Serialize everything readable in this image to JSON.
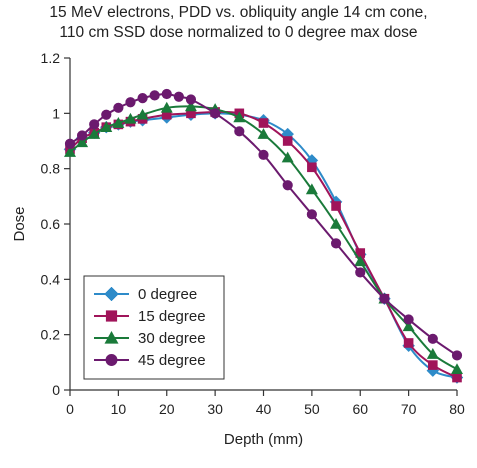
{
  "chart_data": {
    "type": "line",
    "title_line1": "15 MeV electrons, PDD vs. obliquity angle 14 cm cone,",
    "title_line2": "110 cm SSD dose normalized to 0 degree max dose",
    "xlabel": "Depth (mm)",
    "ylabel": "Dose",
    "xlim": [
      0,
      80
    ],
    "ylim": [
      0,
      1.2
    ],
    "xticks": [
      0,
      10,
      20,
      30,
      40,
      50,
      60,
      70,
      80
    ],
    "xtick_labels": [
      "0",
      "10",
      "20",
      "30",
      "40",
      "50",
      "60",
      "70",
      "80"
    ],
    "yticks": [
      0,
      0.2,
      0.4,
      0.6,
      0.8,
      1,
      1.2
    ],
    "ytick_labels": [
      "0",
      "0.2",
      "0.4",
      "0.6",
      "0.8",
      "1",
      "1.2"
    ],
    "legend_position": "lower-left",
    "grid": false,
    "series": [
      {
        "name": "0 degree",
        "color": "#2e8bc9",
        "marker": "diamond",
        "x": [
          0,
          2.5,
          5,
          7.5,
          10,
          12.5,
          15,
          20,
          25,
          30,
          35,
          40,
          45,
          50,
          55,
          60,
          65,
          70,
          75,
          80
        ],
        "y": [
          0.87,
          0.91,
          0.93,
          0.95,
          0.96,
          0.97,
          0.975,
          0.985,
          0.995,
          1.0,
          0.995,
          0.975,
          0.925,
          0.83,
          0.68,
          0.49,
          0.33,
          0.16,
          0.07,
          0.045
        ]
      },
      {
        "name": "15 degree",
        "color": "#a0145a",
        "marker": "square",
        "x": [
          0,
          2.5,
          5,
          7.5,
          10,
          12.5,
          15,
          20,
          25,
          30,
          35,
          40,
          45,
          50,
          55,
          60,
          65,
          70,
          75,
          80
        ],
        "y": [
          0.87,
          0.91,
          0.93,
          0.95,
          0.96,
          0.97,
          0.98,
          0.995,
          1.0,
          1.005,
          1.0,
          0.965,
          0.9,
          0.805,
          0.665,
          0.495,
          0.33,
          0.17,
          0.09,
          0.045
        ]
      },
      {
        "name": "30 degree",
        "color": "#1a7a3a",
        "marker": "triangle",
        "x": [
          0,
          2.5,
          5,
          7.5,
          10,
          12.5,
          15,
          20,
          25,
          30,
          35,
          40,
          45,
          50,
          55,
          60,
          65,
          70,
          75,
          80
        ],
        "y": [
          0.86,
          0.895,
          0.925,
          0.95,
          0.965,
          0.98,
          0.995,
          1.02,
          1.025,
          1.015,
          0.985,
          0.925,
          0.84,
          0.725,
          0.6,
          0.465,
          0.33,
          0.23,
          0.13,
          0.075
        ]
      },
      {
        "name": "45 degree",
        "color": "#6b1a6e",
        "marker": "circle",
        "x": [
          0,
          2.5,
          5,
          7.5,
          10,
          12.5,
          15,
          17.5,
          20,
          22.5,
          25,
          30,
          35,
          40,
          45,
          50,
          55,
          60,
          65,
          70,
          75,
          80
        ],
        "y": [
          0.89,
          0.92,
          0.96,
          0.995,
          1.02,
          1.04,
          1.055,
          1.065,
          1.07,
          1.06,
          1.05,
          1.0,
          0.935,
          0.85,
          0.74,
          0.635,
          0.53,
          0.425,
          0.33,
          0.255,
          0.185,
          0.125
        ]
      }
    ]
  }
}
